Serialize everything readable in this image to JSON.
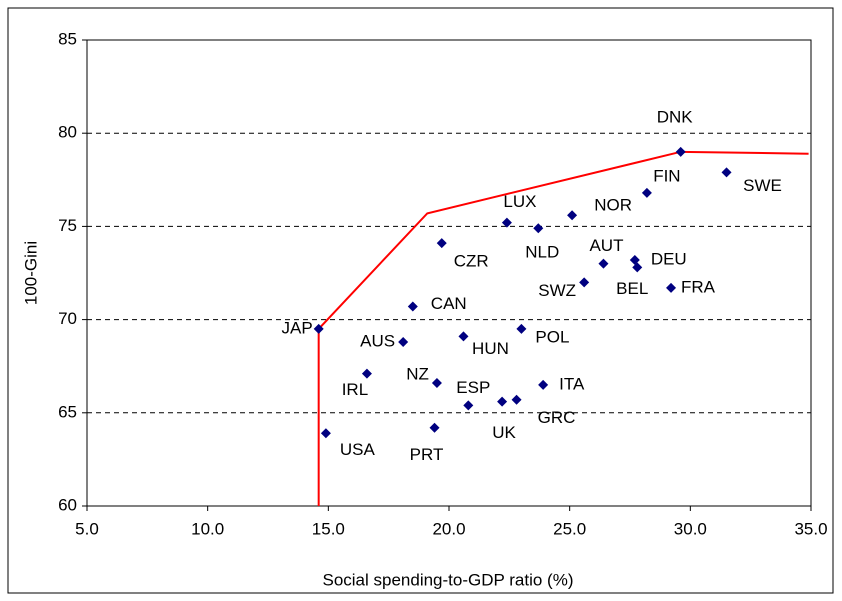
{
  "chart_data": {
    "type": "scatter",
    "x_label": "Social spending-to-GDP ratio (%)",
    "y_label": "100-Gini",
    "xlim": [
      5,
      35
    ],
    "ylim": [
      60,
      85
    ],
    "xticks": [
      {
        "value": 5,
        "label": "5.0"
      },
      {
        "value": 10,
        "label": "10.0"
      },
      {
        "value": 15,
        "label": "15.0"
      },
      {
        "value": 20,
        "label": "20.0"
      },
      {
        "value": 25,
        "label": "25.0"
      },
      {
        "value": 30,
        "label": "30.0"
      },
      {
        "value": 35,
        "label": "35.0"
      }
    ],
    "yticks": [
      60,
      65,
      70,
      75,
      80,
      85
    ],
    "grid": true,
    "series": [
      {
        "color": "#000080",
        "labels": [
          "JAP",
          "USA",
          "IRL",
          "AUS",
          "CAN",
          "CZR",
          "NZ",
          "PRT",
          "ESP",
          "HUN",
          "UK",
          "GRC",
          "LUX",
          "NLD",
          "POL",
          "ITA",
          "NOR",
          "SWZ",
          "AUT",
          "DEU",
          "BEL",
          "FIN",
          "FRA",
          "DNK",
          "SWE"
        ],
        "x": [
          14.6,
          14.9,
          16.6,
          18.1,
          18.5,
          19.7,
          19.5,
          19.4,
          20.8,
          20.6,
          22.2,
          22.8,
          22.4,
          23.7,
          23.0,
          23.9,
          25.1,
          25.6,
          26.4,
          27.7,
          27.8,
          28.2,
          29.2,
          29.6,
          31.5
        ],
        "values": [
          69.5,
          63.9,
          67.1,
          68.8,
          70.7,
          74.1,
          66.6,
          64.2,
          65.4,
          69.1,
          65.6,
          65.7,
          75.2,
          74.9,
          69.5,
          66.5,
          75.6,
          72.0,
          73.0,
          73.2,
          72.8,
          76.8,
          71.7,
          79.0,
          77.9
        ]
      },
      {
        "type": "line",
        "color": "#ff0000",
        "x": [
          14.6,
          14.6,
          19.1,
          29.6,
          34.9
        ],
        "values": [
          60,
          69.5,
          75.7,
          79.0,
          78.9
        ]
      }
    ]
  }
}
